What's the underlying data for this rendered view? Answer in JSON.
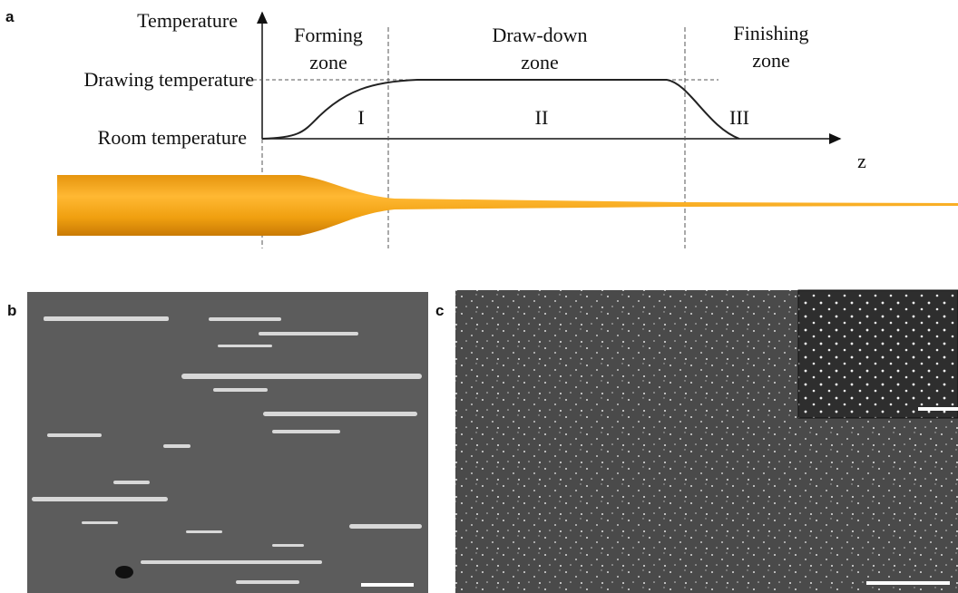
{
  "panel_a": {
    "label": "a",
    "y_axis_title": "Temperature",
    "levels": [
      "Drawing temperature",
      "Room temperature"
    ],
    "x_axis_title": "z",
    "zones": [
      {
        "name": [
          "Forming",
          "zone"
        ],
        "numeral": "I"
      },
      {
        "name": [
          "Draw-down",
          "zone"
        ],
        "numeral": "II"
      },
      {
        "name": [
          "Finishing",
          "zone"
        ],
        "numeral": "III"
      }
    ]
  },
  "panel_b": {
    "label": "b"
  },
  "panel_c": {
    "label": "c"
  }
}
